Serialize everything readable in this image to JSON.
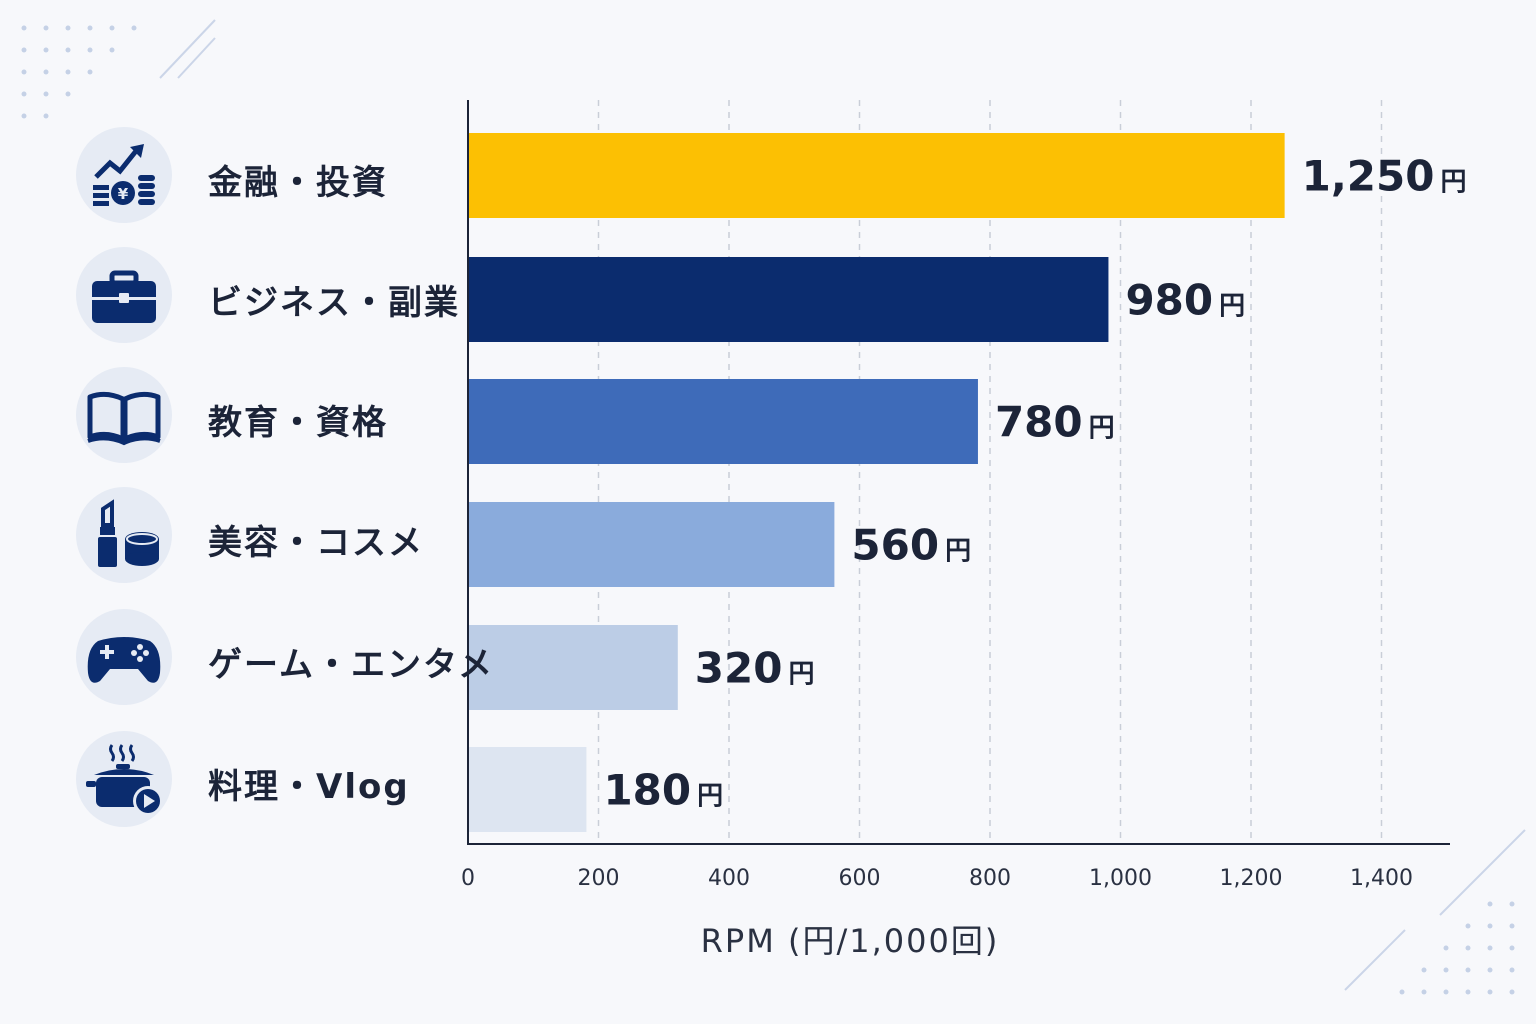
{
  "chart_data": {
    "type": "bar",
    "orientation": "horizontal",
    "categories": [
      "金融・投資",
      "ビジネス・副業",
      "教育・資格",
      "美容・コスメ",
      "ゲーム・エンタメ",
      "料理・Vlog"
    ],
    "values": [
      1250,
      980,
      780,
      560,
      320,
      180
    ],
    "value_labels": [
      "1,250",
      "980",
      "780",
      "560",
      "320",
      "180"
    ],
    "value_unit": "円",
    "xlabel": "RPM (円/1,000回)",
    "xlim": [
      0,
      1500
    ],
    "xticks": [
      0,
      200,
      400,
      600,
      800,
      1000,
      1200,
      1400
    ],
    "xtick_labels": [
      "0",
      "200",
      "400",
      "600",
      "800",
      "1,000",
      "1,200",
      "1,400"
    ],
    "grid": "vertical-dashed",
    "colors": [
      "#fcc003",
      "#0b2c6e",
      "#3e6bb9",
      "#8aabdc",
      "#bccde6",
      "#dde5f1"
    ],
    "icons": [
      "finance-chart-coins-icon",
      "briefcase-icon",
      "open-book-icon",
      "lipstick-compact-icon",
      "gamepad-icon",
      "pot-video-icon"
    ]
  }
}
